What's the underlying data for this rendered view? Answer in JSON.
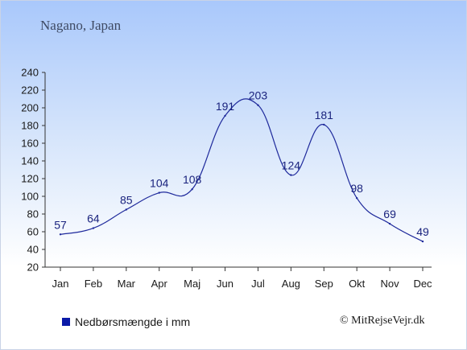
{
  "header": {
    "title": "Nagano, Japan"
  },
  "legend": {
    "label": "Nedbørsmængde i mm",
    "swatch_color": "#0b1aa8"
  },
  "footer": {
    "copyright": "© MitRejseVejr.dk"
  },
  "colors": {
    "line": "#1f2a9c",
    "axis": "#333333",
    "label": "#1a237e"
  },
  "chart_data": {
    "type": "line",
    "categories": [
      "Jan",
      "Feb",
      "Mar",
      "Apr",
      "Maj",
      "Jun",
      "Jul",
      "Aug",
      "Sep",
      "Okt",
      "Nov",
      "Dec"
    ],
    "series": [
      {
        "name": "Nedbørsmængde i mm",
        "values": [
          57,
          64,
          85,
          104,
          108,
          191,
          203,
          124,
          181,
          98,
          69,
          49
        ]
      }
    ],
    "data_labels": [
      "57",
      "64",
      "85",
      "104",
      "108",
      "191",
      "203",
      "124",
      "181",
      "98",
      "69",
      "49"
    ],
    "ylim": [
      20,
      240
    ],
    "yticks": [
      20,
      40,
      60,
      80,
      100,
      120,
      140,
      160,
      180,
      200,
      220,
      240
    ],
    "grid": false,
    "legend_position": "bottom-left"
  }
}
